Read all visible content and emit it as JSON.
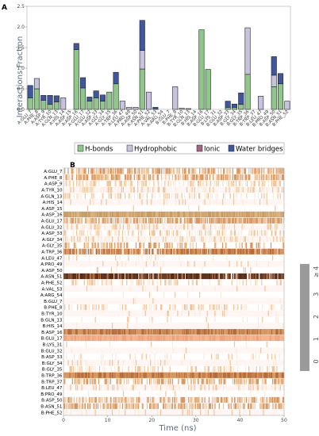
{
  "chart_data": [
    {
      "type": "bar",
      "panel": "A",
      "ylabel": "Interactions Fraction",
      "ylim": [
        0,
        2.5
      ],
      "yticks": [
        "0.0",
        "0.5",
        "1.0",
        "1.5",
        "2.0",
        "2.5"
      ],
      "categories": [
        "A:GLU_7",
        "A:PHE_8",
        "A:ASP_9",
        "A:TYR_10",
        "A:GLN_13",
        "A:HIS_14",
        "A:ASP_15",
        "A:ASP_16",
        "A:GLU_17",
        "A:GLU_32",
        "A:ASP_33",
        "A:GLY_34",
        "A:GLY_35",
        "A:TRP_36",
        "A:LEU_47",
        "A:PRO_49",
        "A:ASP_50",
        "A:ASN_51",
        "A:PHE_52",
        "A:VAL_53",
        "A:ARG_54",
        "B:GLU_7",
        "B:PHE_8",
        "B:TYR_10",
        "B:GLN_13",
        "B:HIS_14",
        "B:ASP_16",
        "B:GLU_17",
        "B:LYS_31",
        "B:GLU_32",
        "B:ASP_33",
        "B:GLY_34",
        "B:GLY_35",
        "B:TRP_36",
        "B:TRP_37",
        "B:LEU_47",
        "B:PRO_49",
        "B:ASP_50",
        "B:ASN_51",
        "B:PHE_52"
      ],
      "series": [
        {
          "name": "H-bonds",
          "color": "#8fc78a",
          "values": [
            0.28,
            0.5,
            0.22,
            0.12,
            0.18,
            0,
            0,
            1.45,
            0.52,
            0.2,
            0.28,
            0.2,
            0.42,
            0.62,
            0,
            0,
            0,
            0.98,
            0,
            0,
            0,
            0,
            0,
            0,
            0,
            0,
            1.93,
            0.97,
            0,
            0,
            0.05,
            0.05,
            0.12,
            0.85,
            0,
            0,
            0,
            0.55,
            0.62,
            0
          ]
        },
        {
          "name": "Hydrophobic",
          "color": "#c7c2dd",
          "values": [
            0,
            0.25,
            0,
            0,
            0,
            0.28,
            0,
            0,
            0,
            0,
            0,
            0,
            0,
            0,
            0.2,
            0.05,
            0.05,
            0.45,
            0.42,
            0,
            0,
            0,
            0.55,
            0.03,
            0.02,
            0,
            0,
            0,
            0,
            0,
            0,
            0,
            0,
            1.13,
            0,
            0.32,
            0,
            0.28,
            0,
            0.2
          ]
        },
        {
          "name": "Ionic",
          "color": "#9e6680",
          "values": [
            0,
            0,
            0,
            0,
            0,
            0,
            0,
            0,
            0,
            0,
            0,
            0,
            0,
            0,
            0,
            0,
            0,
            0,
            0,
            0,
            0,
            0,
            0,
            0,
            0,
            0,
            0,
            0,
            0,
            0,
            0,
            0,
            0,
            0,
            0,
            0,
            0,
            0,
            0,
            0
          ]
        },
        {
          "name": "Water bridges",
          "color": "#3f56a0",
          "values": [
            0.3,
            0,
            0.12,
            0.22,
            0.15,
            0,
            0,
            0.15,
            0.25,
            0.1,
            0.17,
            0.15,
            0,
            0.28,
            0,
            0,
            0,
            0.73,
            0,
            0.05,
            0,
            0,
            0,
            0,
            0,
            0,
            0,
            0,
            0,
            0,
            0.15,
            0.08,
            0.28,
            0,
            0,
            0,
            0,
            0.45,
            0.25,
            0
          ]
        }
      ]
    },
    {
      "type": "heatmap",
      "panel": "B",
      "xlabel": "Time (ns)",
      "xlim": [
        0,
        50
      ],
      "xticks": [
        "0",
        "10",
        "20",
        "30",
        "40",
        "50"
      ],
      "rows": [
        "A:GLU_7",
        "A:PHE_8",
        "A:ASP_9",
        "A:TYR_10",
        "A:GLN_13",
        "A:HIS_14",
        "A:ASP_15",
        "A:ASP_16",
        "A:GLU_17",
        "A:GLU_32",
        "A:ASP_33",
        "A:GLY_34",
        "A:GLY_35",
        "A:TRP_36",
        "A:LEU_47",
        "A:PRO_49",
        "A:ASP_50",
        "A:ASN_51",
        "A:PHE_52",
        "A:VAL_53",
        "A:ARG_54",
        "B:GLU_7",
        "B:PHE_8",
        "B:TYR_10",
        "B:GLN_13",
        "B:HIS_14",
        "B:ASP_16",
        "B:GLU_17",
        "B:LYS_31",
        "B:GLU_32",
        "B:ASP_33",
        "B:GLY_34",
        "B:GLY_35",
        "B:TRP_36",
        "B:TRP_37",
        "B:LEU_47",
        "B:PRO_49",
        "B:ASP_50",
        "B:ASN_51",
        "B:PHE_52"
      ],
      "row_density": [
        0.65,
        0.55,
        0.45,
        0.3,
        0.3,
        0.1,
        0.02,
        1.0,
        0.7,
        0.3,
        0.35,
        0.3,
        0.45,
        0.75,
        0.1,
        0.05,
        0.05,
        0.9,
        0.3,
        0.05,
        0.02,
        0.02,
        0.3,
        0.05,
        0.05,
        0.02,
        1.0,
        1.0,
        0.02,
        0.02,
        0.15,
        0.12,
        0.3,
        1.0,
        0.5,
        0.3,
        0.02,
        0.55,
        0.55,
        0.15
      ],
      "row_intensity": [
        2,
        2,
        1,
        1,
        1,
        1,
        1,
        3,
        2,
        1,
        1,
        1,
        2,
        3,
        1,
        1,
        1,
        4,
        1,
        1,
        1,
        1,
        1,
        1,
        1,
        1,
        3,
        3,
        1,
        1,
        1,
        1,
        1,
        3,
        2,
        1,
        1,
        2,
        2,
        1
      ],
      "colorbar": {
        "label": "# of contacts",
        "ticks": [
          "0",
          "1",
          "2",
          "3",
          "≥ 4"
        ]
      }
    }
  ]
}
